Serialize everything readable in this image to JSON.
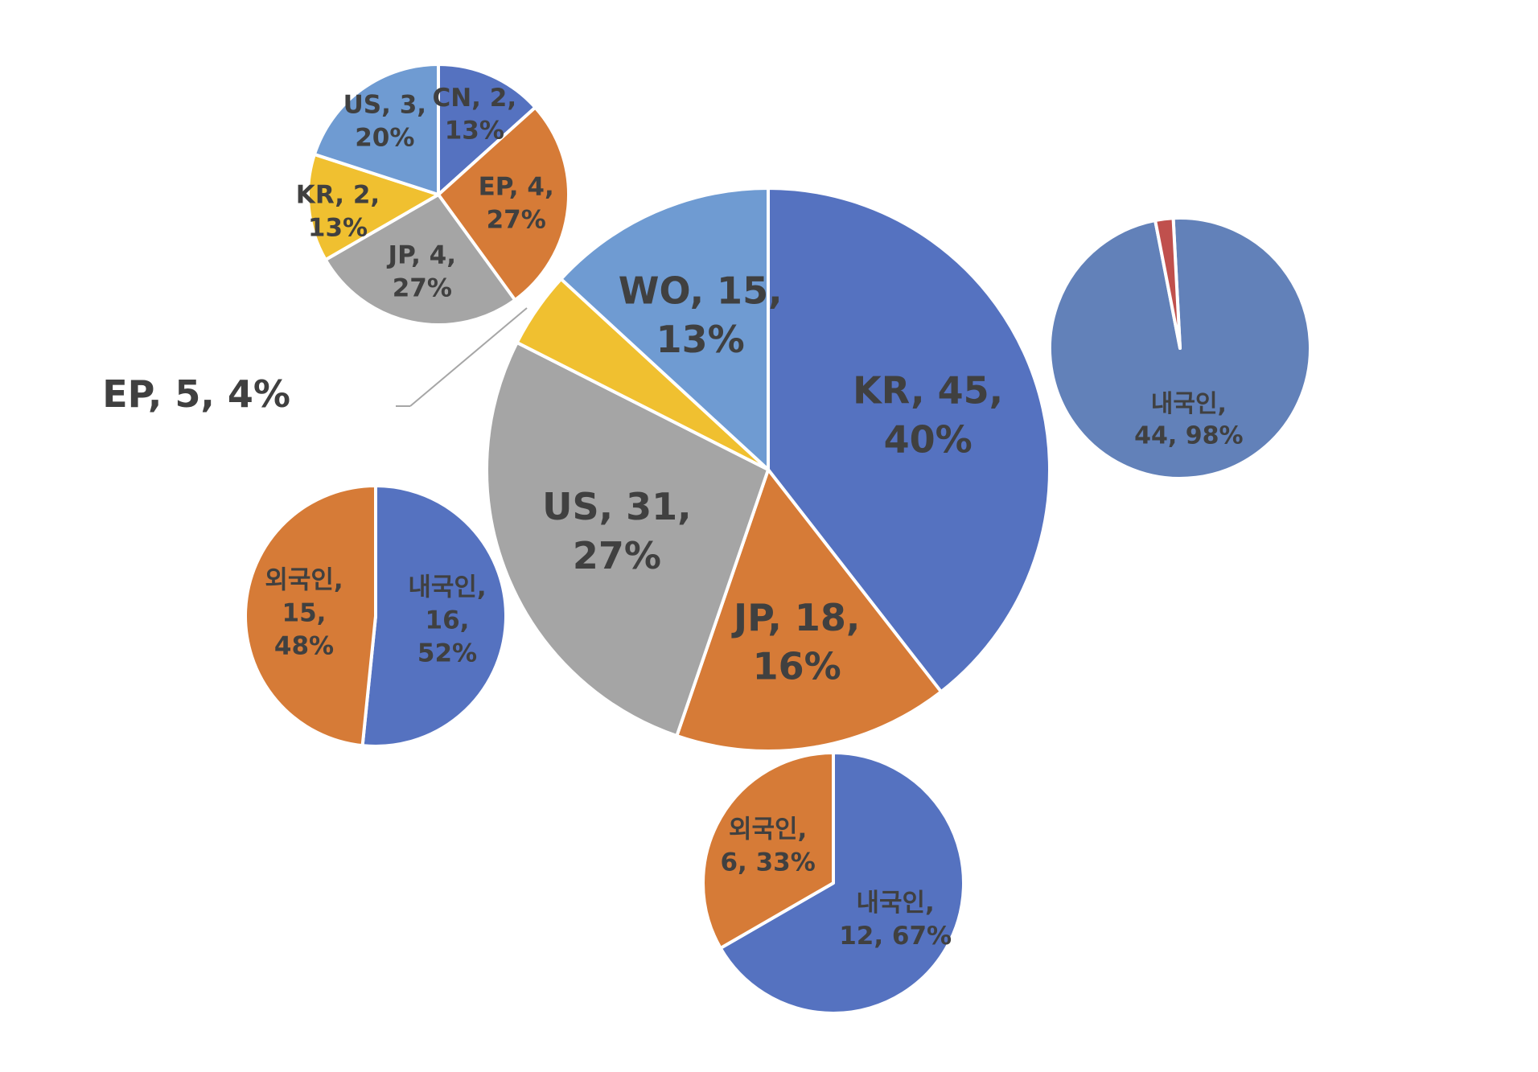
{
  "colors": {
    "blue": "#5572c0",
    "orange": "#d67b37",
    "gray": "#a5a5a5",
    "yellow": "#f0c030",
    "lightblue": "#6f9bd2",
    "steel": "#6281b9",
    "red": "#c0504d",
    "label": "#404040",
    "edge": "#ffffff",
    "leader": "#a6a6a6"
  },
  "chart_data": [
    {
      "id": "main",
      "type": "pie",
      "slices": [
        {
          "name": "KR",
          "value": 45,
          "percent": "40%",
          "color": "blue",
          "label": [
            "KR, 45,",
            "40%"
          ]
        },
        {
          "name": "JP",
          "value": 18,
          "percent": "16%",
          "color": "orange",
          "label": [
            "JP, 18,",
            "16%"
          ]
        },
        {
          "name": "US",
          "value": 31,
          "percent": "27%",
          "color": "gray",
          "label": [
            "US, 31,",
            "27%"
          ]
        },
        {
          "name": "EP",
          "value": 5,
          "percent": "4%",
          "color": "yellow",
          "label": [
            "EP, 5, 4%"
          ]
        },
        {
          "name": "WO",
          "value": 15,
          "percent": "13%",
          "color": "lightblue",
          "label": [
            "WO, 15,",
            "13%"
          ]
        }
      ]
    },
    {
      "id": "wo",
      "type": "pie",
      "slices": [
        {
          "name": "CN",
          "value": 2,
          "percent": "13%",
          "color": "blue",
          "label": [
            "CN, 2,",
            "13%"
          ]
        },
        {
          "name": "EP",
          "value": 4,
          "percent": "27%",
          "color": "orange",
          "label": [
            "EP, 4,",
            "27%"
          ]
        },
        {
          "name": "JP",
          "value": 4,
          "percent": "27%",
          "color": "gray",
          "label": [
            "JP, 4,",
            "27%"
          ]
        },
        {
          "name": "KR",
          "value": 2,
          "percent": "13%",
          "color": "yellow",
          "label": [
            "KR, 2,",
            "13%"
          ]
        },
        {
          "name": "US",
          "value": 3,
          "percent": "20%",
          "color": "lightblue",
          "label": [
            "US, 3,",
            "20%"
          ]
        }
      ]
    },
    {
      "id": "kr",
      "type": "pie",
      "slices": [
        {
          "name": "내국인",
          "value": 44,
          "percent": "98%",
          "color": "steel",
          "label": [
            "내국인,",
            "44, 98%"
          ]
        },
        {
          "name": "",
          "value": 1,
          "percent": "",
          "color": "red",
          "label": []
        }
      ]
    },
    {
      "id": "us",
      "type": "pie",
      "slices": [
        {
          "name": "내국인",
          "value": 16,
          "percent": "52%",
          "color": "blue",
          "label": [
            "내국인,",
            "16,",
            "52%"
          ]
        },
        {
          "name": "외국인",
          "value": 15,
          "percent": "48%",
          "color": "orange",
          "label": [
            "외국인,",
            "15,",
            "48%"
          ]
        }
      ]
    },
    {
      "id": "jp",
      "type": "pie",
      "slices": [
        {
          "name": "내국인",
          "value": 12,
          "percent": "67%",
          "color": "blue",
          "label": [
            "내국인,",
            "12, 67%"
          ]
        },
        {
          "name": "외국인",
          "value": 6,
          "percent": "33%",
          "color": "orange",
          "label": [
            "외국인,",
            "6, 33%"
          ]
        }
      ]
    }
  ]
}
